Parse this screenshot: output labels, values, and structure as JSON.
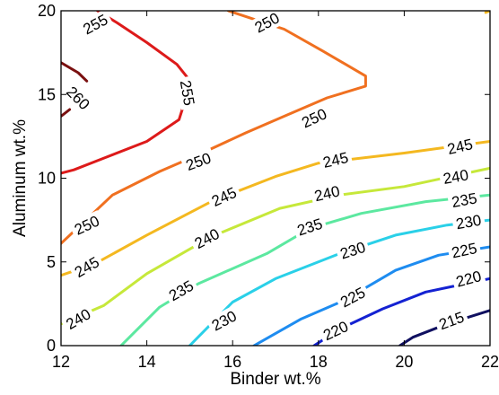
{
  "chart_data": {
    "type": "contour",
    "title": "",
    "xlabel": "Binder wt.%",
    "ylabel": "Aluminum wt.%",
    "xlim": [
      12,
      22
    ],
    "ylim": [
      0,
      20
    ],
    "x_ticks": [
      "12",
      "14",
      "16",
      "18",
      "20",
      "22"
    ],
    "y_ticks": [
      "0",
      "5",
      "10",
      "15",
      "20"
    ],
    "grid": false,
    "contours": [
      {
        "level": 260,
        "label": "260",
        "color": "#7a1010",
        "segments": [
          [
            [
              12.0,
              16.9
            ],
            [
              12.4,
              16.3
            ],
            [
              12.6,
              15.8
            ]
          ],
          [
            [
              12.0,
              13.7
            ],
            [
              12.2,
              14.1
            ]
          ]
        ],
        "label_pos": [
          12.4,
          14.8
        ],
        "label_rot": -45
      },
      {
        "level": 255,
        "label": "255",
        "color": "#dd1a1a",
        "segments": [
          [
            [
              12.85,
              20.0
            ],
            [
              13.3,
              19.3
            ],
            [
              14.0,
              18.1
            ],
            [
              14.7,
              16.8
            ],
            [
              14.95,
              16.0
            ],
            [
              14.95,
              15.1
            ],
            [
              14.75,
              13.5
            ],
            [
              14.0,
              12.2
            ],
            [
              13.0,
              11.2
            ],
            [
              12.3,
              10.5
            ],
            [
              12.0,
              10.3
            ]
          ]
        ],
        "label_pos": [
          14.95,
          15.1
        ],
        "label_rot": -80
      },
      {
        "level": 250,
        "label": "250",
        "color": "#f07020",
        "segments": [
          [
            [
              15.9,
              20.0
            ],
            [
              17.2,
              18.9
            ],
            [
              18.1,
              17.6
            ],
            [
              19.1,
              16.1
            ],
            [
              19.1,
              15.5
            ],
            [
              18.2,
              14.8
            ],
            [
              17.2,
              13.7
            ],
            [
              16.3,
              12.7
            ],
            [
              15.2,
              11.4
            ],
            [
              14.3,
              10.4
            ],
            [
              13.2,
              9.0
            ],
            [
              12.0,
              6.1
            ]
          ]
        ],
        "label_pos": [
          17.9,
          13.6
        ],
        "label_rot": 25
      },
      {
        "level": 245,
        "label": "245",
        "color": "#f4b820",
        "segments": [
          [
            [
              22.0,
              20.0
            ],
            [
              21.9,
              19.9
            ]
          ],
          [
            [
              22.0,
              12.2
            ],
            [
              20.0,
              11.5
            ],
            [
              18.0,
              10.9
            ],
            [
              17.0,
              10.1
            ],
            [
              15.5,
              8.6
            ],
            [
              14.0,
              6.6
            ],
            [
              12.8,
              4.9
            ],
            [
              12.0,
              4.2
            ]
          ]
        ],
        "label_pos": [
          21.3,
          11.9
        ],
        "label_rot": 13
      },
      {
        "level": 240,
        "label": "240",
        "color": "#c6e83a",
        "segments": [
          [
            [
              22.0,
              10.6
            ],
            [
              20.0,
              9.5
            ],
            [
              18.5,
              9.0
            ],
            [
              17.1,
              8.2
            ],
            [
              15.5,
              6.5
            ],
            [
              14.0,
              4.3
            ],
            [
              13.0,
              2.4
            ],
            [
              12.0,
              1.3
            ]
          ]
        ],
        "label_pos": [
          21.2,
          10.1
        ],
        "label_rot": 10
      },
      {
        "level": 235,
        "label": "235",
        "color": "#5ce8a0",
        "segments": [
          [
            [
              22.0,
              9.0
            ],
            [
              20.5,
              8.6
            ],
            [
              19.0,
              7.9
            ],
            [
              17.8,
              7.0
            ],
            [
              16.8,
              5.5
            ],
            [
              15.2,
              3.7
            ],
            [
              14.3,
              2.3
            ],
            [
              13.4,
              0.0
            ]
          ]
        ],
        "label_pos": [
          21.4,
          8.7
        ],
        "label_rot": 10
      },
      {
        "level": 230,
        "label": "230",
        "color": "#2ad0e8",
        "segments": [
          [
            [
              22.0,
              7.5
            ],
            [
              21.0,
              7.2
            ],
            [
              19.8,
              6.6
            ],
            [
              18.5,
              5.5
            ],
            [
              17.0,
              4.0
            ],
            [
              16.0,
              2.6
            ],
            [
              15.0,
              0.0
            ]
          ]
        ],
        "label_pos": [
          21.5,
          7.4
        ],
        "label_rot": 10
      },
      {
        "level": 225,
        "label": "225",
        "color": "#1e8cf0",
        "segments": [
          [
            [
              22.0,
              5.9
            ],
            [
              20.8,
              5.4
            ],
            [
              19.8,
              4.5
            ],
            [
              18.6,
              2.7
            ],
            [
              17.6,
              1.6
            ],
            [
              16.5,
              0.0
            ]
          ]
        ],
        "label_pos": [
          21.4,
          5.7
        ],
        "label_rot": 12
      },
      {
        "level": 220,
        "label": "220",
        "color": "#1422d2",
        "segments": [
          [
            [
              22.0,
              4.0
            ],
            [
              20.5,
              3.2
            ],
            [
              19.5,
              2.2
            ],
            [
              18.5,
              1.0
            ],
            [
              17.9,
              0.0
            ]
          ]
        ],
        "label_pos": [
          21.5,
          4.0
        ],
        "label_rot": 15
      },
      {
        "level": 215,
        "label": "215",
        "color": "#101060",
        "segments": [
          [
            [
              22.0,
              2.1
            ],
            [
              21.0,
              1.3
            ],
            [
              20.2,
              0.5
            ],
            [
              19.9,
              0.0
            ]
          ]
        ],
        "label_pos": [
          21.1,
          1.5
        ],
        "label_rot": 20
      }
    ],
    "extra_labels": [
      {
        "label": "255",
        "pos": [
          12.8,
          19.2
        ],
        "rot": 28,
        "color": "#dd1a1a"
      },
      {
        "label": "250",
        "pos": [
          16.8,
          19.3
        ],
        "rot": 28,
        "color": "#f07020"
      },
      {
        "label": "250",
        "pos": [
          15.2,
          11.0
        ],
        "rot": 20,
        "color": "#f07020"
      },
      {
        "label": "250",
        "pos": [
          12.6,
          7.2
        ],
        "rot": 25,
        "color": "#f07020"
      },
      {
        "label": "245",
        "pos": [
          18.4,
          11.1
        ],
        "rot": 13,
        "color": "#f4b820"
      },
      {
        "label": "245",
        "pos": [
          15.8,
          8.9
        ],
        "rot": 25,
        "color": "#f4b820"
      },
      {
        "label": "245",
        "pos": [
          12.6,
          4.7
        ],
        "rot": 30,
        "color": "#f4b820"
      },
      {
        "label": "240",
        "pos": [
          18.2,
          9.1
        ],
        "rot": 13,
        "color": "#c6e83a"
      },
      {
        "label": "240",
        "pos": [
          15.4,
          6.4
        ],
        "rot": 28,
        "color": "#c6e83a"
      },
      {
        "label": "240",
        "pos": [
          12.4,
          1.6
        ],
        "rot": 30,
        "color": "#c6e83a"
      },
      {
        "label": "235",
        "pos": [
          17.8,
          7.1
        ],
        "rot": 18,
        "color": "#5ce8a0"
      },
      {
        "label": "235",
        "pos": [
          14.8,
          3.3
        ],
        "rot": 30,
        "color": "#5ce8a0"
      },
      {
        "label": "230",
        "pos": [
          18.8,
          5.7
        ],
        "rot": 18,
        "color": "#2ad0e8"
      },
      {
        "label": "230",
        "pos": [
          15.8,
          1.5
        ],
        "rot": 28,
        "color": "#2ad0e8"
      },
      {
        "label": "225",
        "pos": [
          18.8,
          2.9
        ],
        "rot": 28,
        "color": "#1e8cf0"
      },
      {
        "label": "220",
        "pos": [
          18.4,
          0.9
        ],
        "rot": 25,
        "color": "#1422d2"
      }
    ]
  }
}
